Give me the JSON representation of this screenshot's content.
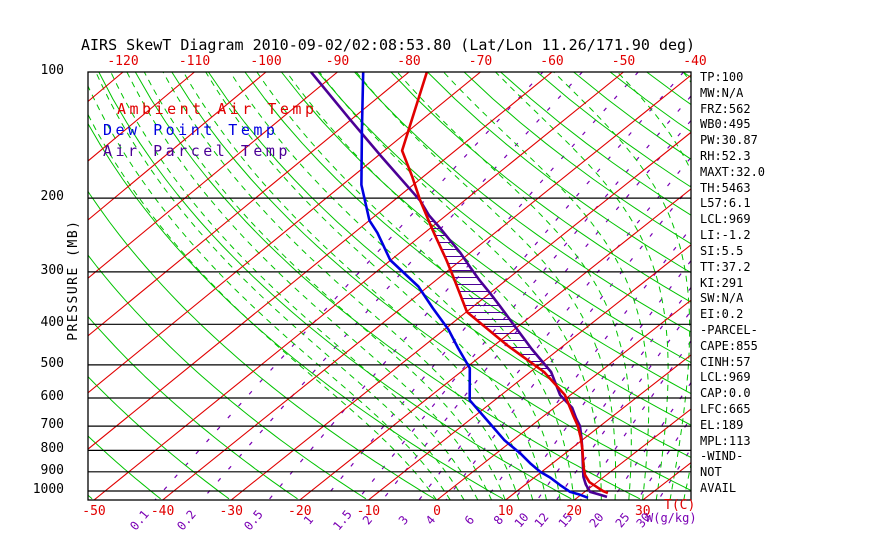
{
  "title": "AIRS SkewT Diagram 2010-09-02/02:08:53.80 (Lat/Lon 11.26/171.90 deg)",
  "colors": {
    "isotherm": "#e10000",
    "adiabat_green": "#00c300",
    "mixing_ratio": "#7a00b4",
    "ambient": "#e10000",
    "dewpoint": "#0000e0",
    "parcel": "#4b0096",
    "frame": "#000000"
  },
  "legend": [
    {
      "label": "Ambient Air Temp",
      "color": "#e10000"
    },
    {
      "label": "Dew Point Temp",
      "color": "#0000e0"
    },
    {
      "label": "Air Parcel Temp",
      "color": "#4b0096"
    }
  ],
  "y_axis": {
    "label": "PRESSURE (MB)",
    "ticks": [
      100,
      200,
      300,
      400,
      500,
      600,
      700,
      800,
      900,
      1000
    ]
  },
  "x_axis_top": {
    "labels": [
      -120,
      -110,
      -100,
      -90,
      -80,
      -70,
      -60,
      -50,
      -40
    ]
  },
  "x_axis_bottom": {
    "labels": [
      -50,
      -40,
      -30,
      -20,
      -10,
      0,
      10,
      20,
      30
    ],
    "unit": "T(C)"
  },
  "mixing_axis": {
    "labels": [
      "0.1",
      "0.2",
      "0.5",
      "1",
      "1.5",
      "2",
      "3",
      "4",
      "6",
      "8",
      "10",
      "12",
      "15",
      "20",
      "25",
      "30"
    ],
    "prefix": "W",
    "unit": "(g/kg)"
  },
  "stats": [
    "TP:100",
    "MW:N/A",
    "FRZ:562",
    "WB0:495",
    "PW:30.87",
    "RH:52.3",
    "MAXT:32.0",
    "TH:5463",
    "L57:6.1",
    "LCL:969",
    "LI:-1.2",
    "SI:5.5",
    "TT:37.2",
    "KI:291",
    "SW:N/A",
    "EI:0.2",
    "-PARCEL-",
    "CAPE:855",
    "CINH:57",
    "LCL:969",
    "CAP:0.0",
    "LFC:665",
    "EL:189",
    "MPL:113",
    "-WIND-",
    "NOT",
    "AVAIL"
  ],
  "chart_data": {
    "type": "line",
    "variant": "skew-t-log-p",
    "title": "AIRS SkewT Diagram 2010-09-02/02:08:53.80 (Lat/Lon 11.26/171.90 deg)",
    "xlabel": "T(C)",
    "ylabel": "PRESSURE (MB)",
    "pressure_range_mb": [
      100,
      1052
    ],
    "pressure_gridlines": [
      200,
      300,
      400,
      500,
      600,
      700,
      800,
      900,
      1000
    ],
    "isotherms_c": {
      "min": -160,
      "max": 50,
      "step": 10
    },
    "dry_adiabats_surface_temp_c": {
      "min": -160,
      "max": 180,
      "step": 10
    },
    "moist_adiabats_surface_temp_c": {
      "min": 0,
      "max": 54,
      "step": 2
    },
    "mixing_ratio_g_kg": [
      0.1,
      0.2,
      0.5,
      1,
      1.5,
      2,
      3,
      4,
      6,
      8,
      10,
      12,
      15,
      20,
      25,
      30
    ],
    "cape_hatch_pressure_range": [
      195,
      655
    ],
    "series": [
      {
        "name": "Ambient Air Temp",
        "color": "#e10000",
        "points_p_t": [
          [
            100,
            -77.5
          ],
          [
            154,
            -67.5
          ],
          [
            178,
            -61.5
          ],
          [
            203,
            -56.2
          ],
          [
            238,
            -49.4
          ],
          [
            281,
            -42.1
          ],
          [
            307,
            -38.3
          ],
          [
            374,
            -29.9
          ],
          [
            450,
            -18.0
          ],
          [
            520,
            -8.0
          ],
          [
            590,
            -0.8
          ],
          [
            658,
            4.0
          ],
          [
            700,
            6.8
          ],
          [
            745,
            9.3
          ],
          [
            788,
            11.4
          ],
          [
            881,
            15.4
          ],
          [
            916,
            16.9
          ],
          [
            953,
            18.9
          ],
          [
            979,
            20.9
          ],
          [
            1000,
            22.5
          ],
          [
            1011,
            23.6
          ]
        ]
      },
      {
        "name": "Dew Point Temp",
        "color": "#0000e0",
        "points_p_t": [
          [
            100,
            -86.4
          ],
          [
            138,
            -76.6
          ],
          [
            186,
            -67.3
          ],
          [
            207,
            -63.3
          ],
          [
            226,
            -60.0
          ],
          [
            242,
            -56.7
          ],
          [
            281,
            -50.1
          ],
          [
            325,
            -41.4
          ],
          [
            366,
            -35.5
          ],
          [
            412,
            -29.4
          ],
          [
            456,
            -24.7
          ],
          [
            509,
            -19.4
          ],
          [
            607,
            -13.6
          ],
          [
            694,
            -6.1
          ],
          [
            757,
            -1.2
          ],
          [
            812,
            3.4
          ],
          [
            858,
            6.7
          ],
          [
            900,
            9.8
          ],
          [
            930,
            12.4
          ],
          [
            967,
            15.1
          ],
          [
            1005,
            17.9
          ],
          [
            1021,
            19.9
          ],
          [
            1038,
            21.6
          ]
        ]
      },
      {
        "name": "Air Parcel Temp",
        "color": "#4b0096",
        "points_p_t": [
          [
            100,
            -93.7
          ],
          [
            130,
            -80.1
          ],
          [
            160,
            -69.1
          ],
          [
            203,
            -56.2
          ],
          [
            220,
            -52.4
          ],
          [
            235,
            -48.8
          ],
          [
            252,
            -45.1
          ],
          [
            270,
            -41.4
          ],
          [
            292,
            -37.5
          ],
          [
            314,
            -33.8
          ],
          [
            337,
            -30.0
          ],
          [
            363,
            -26.1
          ],
          [
            458,
            -14.0
          ],
          [
            520,
            -7.0
          ],
          [
            590,
            -1.5
          ],
          [
            633,
            2.6
          ],
          [
            669,
            5.0
          ],
          [
            700,
            7.1
          ],
          [
            745,
            9.4
          ],
          [
            788,
            11.4
          ],
          [
            881,
            15.3
          ],
          [
            925,
            17.0
          ],
          [
            965,
            18.8
          ],
          [
            1005,
            20.8
          ],
          [
            1021,
            22.8
          ],
          [
            1033,
            24.2
          ]
        ]
      }
    ]
  }
}
